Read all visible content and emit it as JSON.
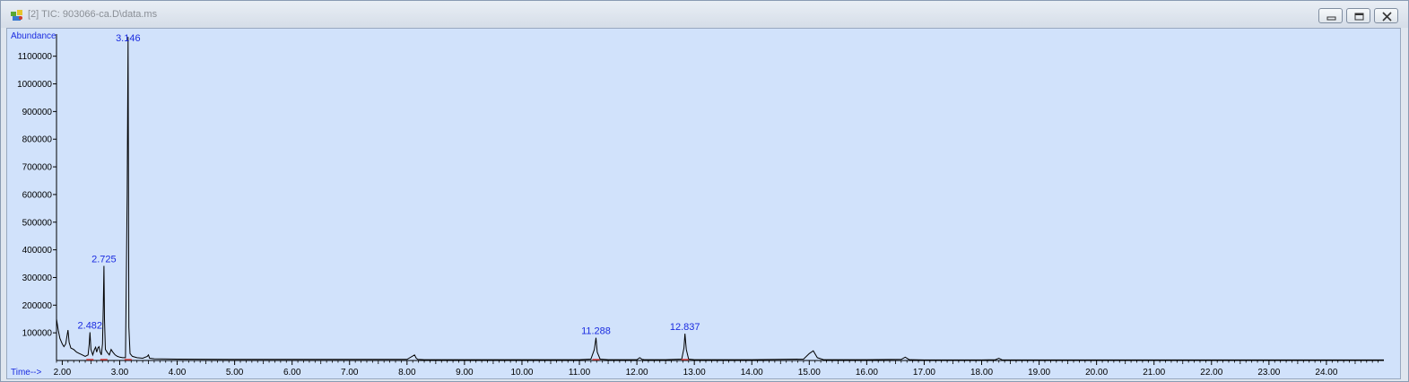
{
  "window": {
    "title": "[2] TIC: 903066-ca.D\\data.ms"
  },
  "controls": {
    "minimize_icon": "minimize-icon",
    "maximize_icon": "maximize-icon",
    "close_icon": "close-icon"
  },
  "chart_data": {
    "type": "line",
    "xlabel": "Time-->",
    "ylabel": "Abundance",
    "xlim": [
      1.9,
      25.0
    ],
    "ylim": [
      0,
      1180000
    ],
    "xticks": [
      2,
      3,
      4,
      5,
      6,
      7,
      8,
      9,
      10,
      11,
      12,
      13,
      14,
      15,
      16,
      17,
      18,
      19,
      20,
      21,
      22,
      23,
      24
    ],
    "xtick_labels": [
      "2.00",
      "3.00",
      "4.00",
      "5.00",
      "6.00",
      "7.00",
      "8.00",
      "9.00",
      "10.00",
      "11.00",
      "12.00",
      "13.00",
      "14.00",
      "15.00",
      "16.00",
      "17.00",
      "18.00",
      "19.00",
      "20.00",
      "21.00",
      "22.00",
      "23.00",
      "24.00"
    ],
    "yticks": [
      100000,
      200000,
      300000,
      400000,
      500000,
      600000,
      700000,
      800000,
      900000,
      1000000,
      1100000
    ],
    "ytick_labels": [
      "100000",
      "200000",
      "300000",
      "400000",
      "500000",
      "600000",
      "700000",
      "800000",
      "900000",
      "1000000",
      "1100000"
    ],
    "series": [
      {
        "x": [
          1.9,
          1.93,
          1.96,
          2.0,
          2.03,
          2.06,
          2.08,
          2.1,
          2.12,
          2.15,
          2.2,
          2.25,
          2.3,
          2.35,
          2.4,
          2.45,
          2.47,
          2.482,
          2.5,
          2.53,
          2.56,
          2.58,
          2.6,
          2.62,
          2.64,
          2.66,
          2.68,
          2.7,
          2.715,
          2.725,
          2.735,
          2.75,
          2.78,
          2.82,
          2.85,
          2.88,
          2.92,
          2.96,
          3.0,
          3.05,
          3.1,
          3.13,
          3.146,
          3.16,
          3.18,
          3.22,
          3.3,
          3.4,
          3.48,
          3.5,
          3.52,
          3.6,
          4.0,
          5.0,
          6.0,
          7.0,
          8.0,
          8.13,
          8.16,
          8.19,
          8.3,
          9.0,
          10.0,
          11.0,
          11.2,
          11.26,
          11.288,
          11.31,
          11.36,
          11.5,
          12.0,
          12.05,
          12.09,
          12.13,
          12.5,
          12.78,
          12.82,
          12.837,
          12.86,
          12.9,
          13.0,
          14.0,
          14.9,
          15.0,
          15.07,
          15.14,
          15.25,
          16.0,
          16.6,
          16.67,
          16.74,
          17.0,
          18.0,
          18.24,
          18.3,
          18.36,
          19.0,
          20.0,
          21.0,
          22.0,
          23.0,
          24.0,
          25.0
        ],
        "y": [
          150000,
          110000,
          80000,
          60000,
          50000,
          60000,
          85000,
          110000,
          65000,
          45000,
          40000,
          30000,
          25000,
          20000,
          15000,
          20000,
          60000,
          102000,
          40000,
          20000,
          40000,
          48000,
          30000,
          45000,
          50000,
          30000,
          20000,
          60000,
          200000,
          342000,
          150000,
          40000,
          30000,
          20000,
          40000,
          30000,
          20000,
          15000,
          12000,
          10000,
          10000,
          600000,
          1170000,
          120000,
          25000,
          15000,
          10000,
          8000,
          15000,
          20000,
          8000,
          6000,
          5000,
          4000,
          4000,
          4000,
          4000,
          20000,
          8000,
          4000,
          3000,
          3000,
          3000,
          3000,
          5000,
          40000,
          82000,
          30000,
          5000,
          3000,
          3000,
          10000,
          4000,
          3000,
          3000,
          5000,
          45000,
          97000,
          40000,
          5000,
          3000,
          3000,
          5000,
          25000,
          35000,
          10000,
          3000,
          3000,
          4000,
          12000,
          3000,
          2000,
          2000,
          3000,
          8000,
          2000,
          2000,
          2000,
          2000,
          2000,
          2000,
          2000,
          2000
        ]
      }
    ],
    "annotations": [
      {
        "text": "3.146",
        "x": 3.146,
        "y": 1170000
      },
      {
        "text": "2.725",
        "x": 2.725,
        "y": 342000
      },
      {
        "text": "2.482",
        "x": 2.482,
        "y": 102000
      },
      {
        "text": "11.288",
        "x": 11.288,
        "y": 82000
      },
      {
        "text": "12.837",
        "x": 12.837,
        "y": 97000
      }
    ],
    "baseline_markers": [
      2.482,
      2.725,
      3.146,
      11.288,
      12.837
    ],
    "grid": false,
    "line_color": "#000000",
    "label_color": "#1a2be0",
    "marker_color": "#d43a3a",
    "background_color": "#d1e2fb"
  }
}
